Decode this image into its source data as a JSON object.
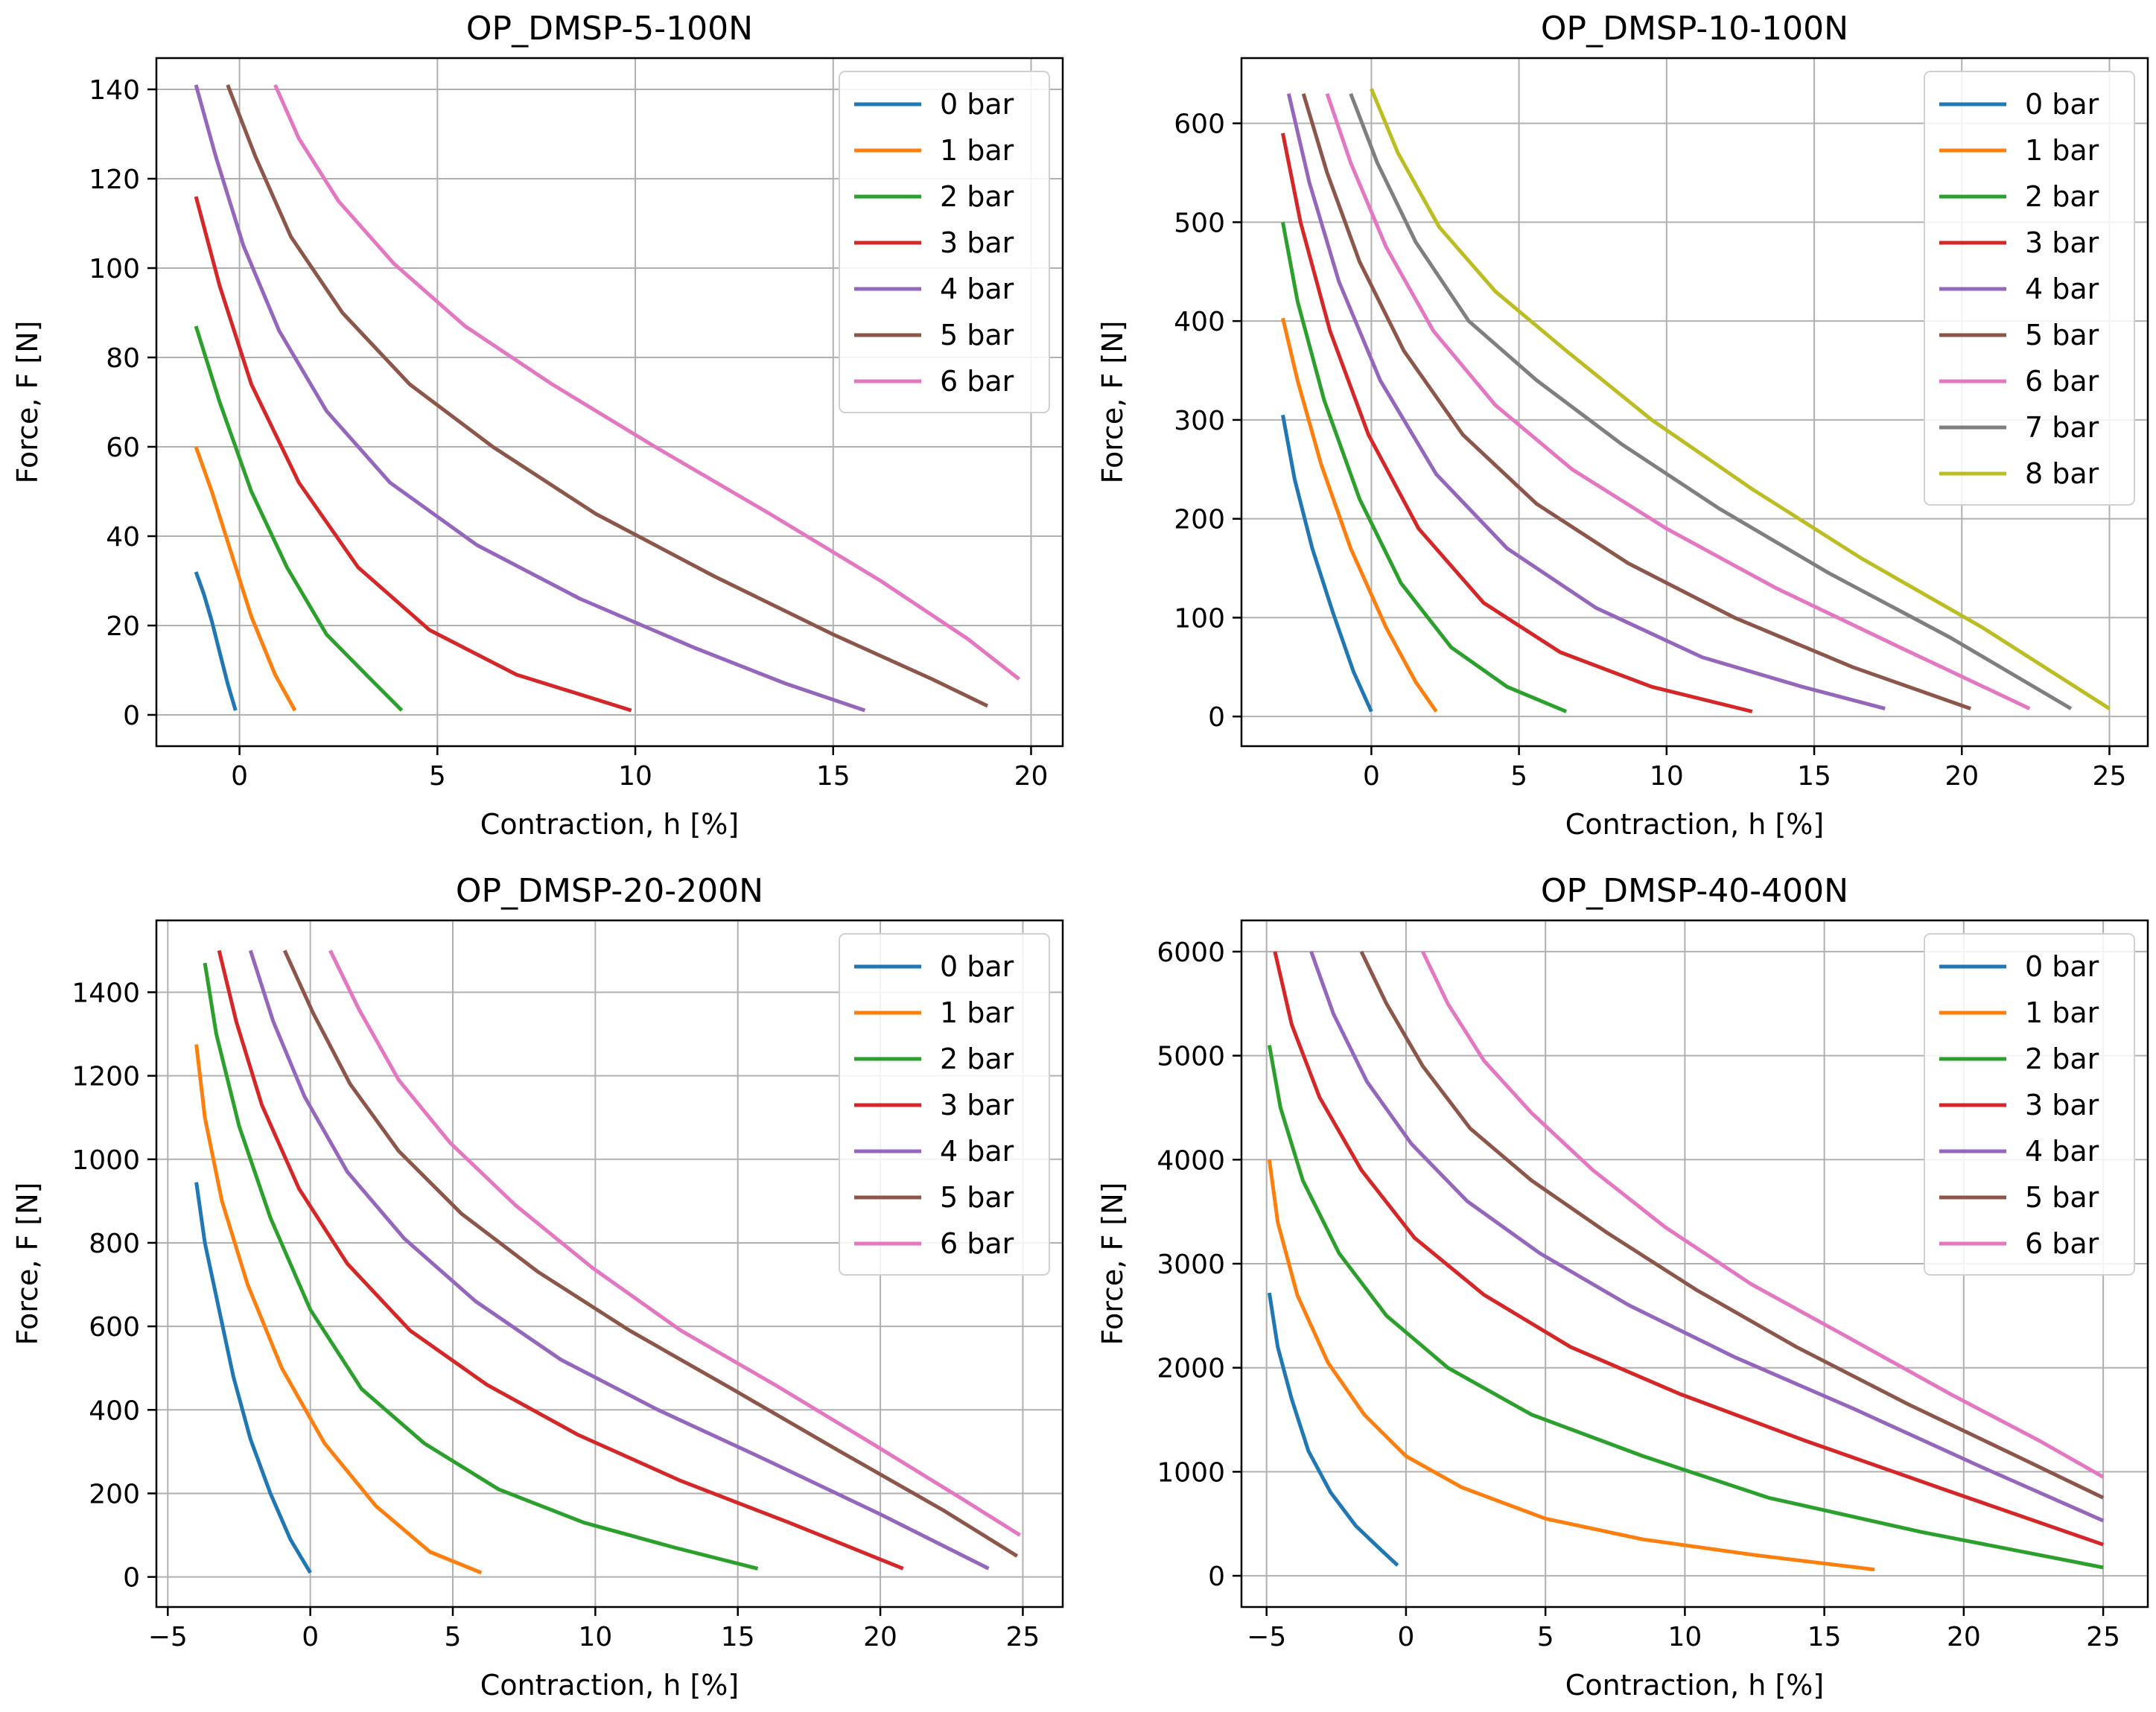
{
  "chart_data": [
    {
      "type": "line",
      "title": "OP_DMSP-5-100N",
      "xlabel": "Contraction, h [%]",
      "ylabel": "Force, F [N]",
      "xlim": [
        -2.1,
        20.8
      ],
      "ylim": [
        -7,
        147
      ],
      "xticks": [
        0,
        5,
        10,
        15,
        20
      ],
      "yticks": [
        0,
        20,
        40,
        60,
        80,
        100,
        120,
        140
      ],
      "grid": true,
      "legend": "top-right",
      "series": [
        {
          "name": "0 bar",
          "color": "#1f77b4",
          "x": [
            -1.1,
            -0.9,
            -0.7,
            -0.5,
            -0.3,
            -0.1
          ],
          "y": [
            32,
            27,
            21,
            14,
            7,
            1
          ]
        },
        {
          "name": "1 bar",
          "color": "#ff7f0e",
          "x": [
            -1.1,
            -0.7,
            -0.2,
            0.3,
            0.9,
            1.4
          ],
          "y": [
            60,
            50,
            36,
            22,
            9,
            1
          ]
        },
        {
          "name": "2 bar",
          "color": "#2ca02c",
          "x": [
            -1.1,
            -0.5,
            0.3,
            1.2,
            2.2,
            3.2,
            4.1
          ],
          "y": [
            87,
            70,
            50,
            33,
            18,
            9,
            1
          ]
        },
        {
          "name": "3 bar",
          "color": "#d62728",
          "x": [
            -1.1,
            -0.5,
            0.3,
            1.5,
            3.0,
            4.8,
            7.0,
            9.9
          ],
          "y": [
            116,
            96,
            74,
            52,
            33,
            19,
            9,
            1
          ]
        },
        {
          "name": "4 bar",
          "color": "#9467bd",
          "x": [
            -1.1,
            -0.6,
            0.1,
            1.0,
            2.2,
            3.8,
            6.0,
            8.6,
            11.5,
            13.8,
            15.8
          ],
          "y": [
            141,
            125,
            105,
            86,
            68,
            52,
            38,
            26,
            15,
            7,
            1
          ]
        },
        {
          "name": "5 bar",
          "color": "#8c564b",
          "x": [
            -0.3,
            0.4,
            1.3,
            2.6,
            4.3,
            6.4,
            9.0,
            12.0,
            15.0,
            17.5,
            18.9
          ],
          "y": [
            141,
            125,
            107,
            90,
            74,
            60,
            45,
            31,
            18,
            8,
            2
          ]
        },
        {
          "name": "6 bar",
          "color": "#e377c2",
          "x": [
            0.9,
            1.5,
            2.5,
            3.9,
            5.7,
            7.9,
            10.5,
            13.4,
            16.2,
            18.4,
            19.7
          ],
          "y": [
            141,
            129,
            115,
            101,
            87,
            74,
            60,
            45,
            30,
            17,
            8
          ]
        }
      ]
    },
    {
      "type": "line",
      "title": "OP_DMSP-10-100N",
      "xlabel": "Contraction, h [%]",
      "ylabel": "Force, F [N]",
      "xlim": [
        -4.4,
        26.3
      ],
      "ylim": [
        -30,
        666
      ],
      "xticks": [
        0,
        5,
        10,
        15,
        20,
        25
      ],
      "yticks": [
        0,
        100,
        200,
        300,
        400,
        500,
        600
      ],
      "grid": true,
      "legend": "top-right",
      "series": [
        {
          "name": "0 bar",
          "color": "#1f77b4",
          "x": [
            -3.0,
            -2.6,
            -2.0,
            -1.3,
            -0.6,
            0.0
          ],
          "y": [
            305,
            240,
            170,
            105,
            45,
            5
          ]
        },
        {
          "name": "1 bar",
          "color": "#ff7f0e",
          "x": [
            -3.0,
            -2.5,
            -1.7,
            -0.7,
            0.5,
            1.5,
            2.2
          ],
          "y": [
            403,
            340,
            255,
            170,
            90,
            35,
            5
          ]
        },
        {
          "name": "2 bar",
          "color": "#2ca02c",
          "x": [
            -3.0,
            -2.5,
            -1.6,
            -0.4,
            1.0,
            2.7,
            4.6,
            6.6
          ],
          "y": [
            500,
            420,
            320,
            220,
            135,
            70,
            30,
            5
          ]
        },
        {
          "name": "3 bar",
          "color": "#d62728",
          "x": [
            -3.0,
            -2.4,
            -1.4,
            -0.1,
            1.6,
            3.8,
            6.4,
            9.5,
            12.9
          ],
          "y": [
            590,
            500,
            390,
            285,
            190,
            115,
            65,
            30,
            5
          ]
        },
        {
          "name": "4 bar",
          "color": "#9467bd",
          "x": [
            -2.8,
            -2.1,
            -1.1,
            0.3,
            2.2,
            4.6,
            7.6,
            11.2,
            14.6,
            17.4
          ],
          "y": [
            630,
            540,
            440,
            340,
            245,
            170,
            110,
            60,
            30,
            8
          ]
        },
        {
          "name": "5 bar",
          "color": "#8c564b",
          "x": [
            -2.3,
            -1.5,
            -0.4,
            1.1,
            3.1,
            5.6,
            8.7,
            12.3,
            16.3,
            20.3
          ],
          "y": [
            630,
            550,
            460,
            370,
            285,
            215,
            155,
            100,
            50,
            8
          ]
        },
        {
          "name": "6 bar",
          "color": "#e377c2",
          "x": [
            -1.5,
            -0.7,
            0.5,
            2.1,
            4.2,
            6.8,
            10.0,
            13.7,
            17.9,
            22.3
          ],
          "y": [
            630,
            560,
            475,
            390,
            315,
            250,
            190,
            130,
            70,
            8
          ]
        },
        {
          "name": "7 bar",
          "color": "#7f7f7f",
          "x": [
            -0.7,
            0.2,
            1.5,
            3.3,
            5.6,
            8.5,
            11.8,
            15.5,
            19.6,
            23.7
          ],
          "y": [
            630,
            560,
            480,
            400,
            340,
            275,
            210,
            145,
            80,
            8
          ]
        },
        {
          "name": "8 bar",
          "color": "#bcbd22",
          "x": [
            0.0,
            0.9,
            2.3,
            4.2,
            6.6,
            9.5,
            12.9,
            16.6,
            20.7,
            25.0
          ],
          "y": [
            635,
            570,
            495,
            430,
            370,
            300,
            230,
            160,
            90,
            8
          ]
        }
      ]
    },
    {
      "type": "line",
      "title": "OP_DMSP-20-200N",
      "xlabel": "Contraction, h [%]",
      "ylabel": "Force, F [N]",
      "xlim": [
        -5.4,
        26.4
      ],
      "ylim": [
        -72,
        1572
      ],
      "xticks": [
        -5,
        0,
        5,
        10,
        15,
        20,
        25
      ],
      "yticks": [
        0,
        200,
        400,
        600,
        800,
        1000,
        1200,
        1400
      ],
      "grid": true,
      "legend": "top-right",
      "series": [
        {
          "name": "0 bar",
          "color": "#1f77b4",
          "x": [
            -4.0,
            -3.7,
            -3.2,
            -2.7,
            -2.1,
            -1.4,
            -0.7,
            0.0
          ],
          "y": [
            945,
            800,
            640,
            480,
            330,
            200,
            90,
            10
          ]
        },
        {
          "name": "1 bar",
          "color": "#ff7f0e",
          "x": [
            -4.0,
            -3.7,
            -3.1,
            -2.2,
            -1.0,
            0.5,
            2.3,
            4.2,
            6.0
          ],
          "y": [
            1275,
            1100,
            900,
            700,
            500,
            320,
            170,
            60,
            10
          ]
        },
        {
          "name": "2 bar",
          "color": "#2ca02c",
          "x": [
            -3.7,
            -3.3,
            -2.5,
            -1.4,
            0.0,
            1.8,
            4.0,
            6.6,
            9.6,
            12.8,
            15.7
          ],
          "y": [
            1470,
            1300,
            1080,
            860,
            640,
            450,
            320,
            210,
            130,
            70,
            20
          ]
        },
        {
          "name": "3 bar",
          "color": "#d62728",
          "x": [
            -3.2,
            -2.6,
            -1.7,
            -0.4,
            1.3,
            3.5,
            6.2,
            9.4,
            13.0,
            16.8,
            20.8
          ],
          "y": [
            1500,
            1330,
            1130,
            930,
            750,
            590,
            460,
            340,
            230,
            130,
            20
          ]
        },
        {
          "name": "4 bar",
          "color": "#9467bd",
          "x": [
            -2.1,
            -1.3,
            -0.2,
            1.3,
            3.3,
            5.8,
            8.8,
            12.2,
            16.0,
            20.0,
            23.8
          ],
          "y": [
            1500,
            1330,
            1150,
            970,
            810,
            660,
            520,
            400,
            280,
            150,
            20
          ]
        },
        {
          "name": "5 bar",
          "color": "#8c564b",
          "x": [
            -0.9,
            0.1,
            1.4,
            3.1,
            5.3,
            8.0,
            11.2,
            14.8,
            18.6,
            22.2,
            24.8
          ],
          "y": [
            1500,
            1350,
            1180,
            1020,
            870,
            730,
            590,
            450,
            300,
            160,
            50
          ]
        },
        {
          "name": "6 bar",
          "color": "#e377c2",
          "x": [
            0.7,
            1.7,
            3.1,
            4.9,
            7.2,
            9.9,
            13.0,
            16.3,
            19.7,
            22.8,
            24.9
          ],
          "y": [
            1500,
            1360,
            1190,
            1040,
            890,
            740,
            590,
            460,
            320,
            190,
            100
          ]
        }
      ]
    },
    {
      "type": "line",
      "title": "OP_DMSP-40-400N",
      "xlabel": "Contraction, h [%]",
      "ylabel": "Force, F [N]",
      "xlim": [
        -5.9,
        26.6
      ],
      "ylim": [
        -300,
        6300
      ],
      "xticks": [
        -5,
        0,
        5,
        10,
        15,
        20,
        25
      ],
      "yticks": [
        0,
        1000,
        2000,
        3000,
        4000,
        5000,
        6000
      ],
      "grid": true,
      "legend": "top-right",
      "series": [
        {
          "name": "0 bar",
          "color": "#1f77b4",
          "x": [
            -4.9,
            -4.6,
            -4.1,
            -3.5,
            -2.7,
            -1.8,
            -0.9,
            -0.3
          ],
          "y": [
            2720,
            2200,
            1700,
            1200,
            800,
            480,
            250,
            100
          ]
        },
        {
          "name": "1 bar",
          "color": "#ff7f0e",
          "x": [
            -4.9,
            -4.6,
            -3.9,
            -2.8,
            -1.5,
            0.0,
            2.0,
            5.0,
            8.5,
            12.5,
            16.8
          ],
          "y": [
            4000,
            3400,
            2700,
            2050,
            1550,
            1150,
            850,
            550,
            350,
            200,
            60
          ]
        },
        {
          "name": "2 bar",
          "color": "#2ca02c",
          "x": [
            -4.9,
            -4.5,
            -3.7,
            -2.4,
            -0.7,
            1.5,
            4.5,
            8.5,
            13.0,
            18.5,
            25.0
          ],
          "y": [
            5100,
            4500,
            3800,
            3100,
            2500,
            2000,
            1550,
            1150,
            750,
            420,
            80
          ]
        },
        {
          "name": "3 bar",
          "color": "#d62728",
          "x": [
            -4.7,
            -4.1,
            -3.1,
            -1.6,
            0.3,
            2.8,
            5.9,
            9.8,
            14.3,
            19.4,
            25.0
          ],
          "y": [
            6000,
            5300,
            4600,
            3900,
            3250,
            2700,
            2200,
            1750,
            1300,
            820,
            300
          ]
        },
        {
          "name": "4 bar",
          "color": "#9467bd",
          "x": [
            -3.4,
            -2.6,
            -1.4,
            0.2,
            2.2,
            4.8,
            8.0,
            11.8,
            16.1,
            20.6,
            25.0
          ],
          "y": [
            6000,
            5400,
            4750,
            4150,
            3600,
            3100,
            2600,
            2100,
            1600,
            1050,
            530
          ]
        },
        {
          "name": "5 bar",
          "color": "#8c564b",
          "x": [
            -1.6,
            -0.7,
            0.6,
            2.3,
            4.5,
            7.2,
            10.4,
            14.0,
            18.0,
            21.9,
            25.0
          ],
          "y": [
            6000,
            5500,
            4900,
            4300,
            3800,
            3300,
            2750,
            2200,
            1650,
            1150,
            750
          ]
        },
        {
          "name": "6 bar",
          "color": "#e377c2",
          "x": [
            0.6,
            1.5,
            2.8,
            4.5,
            6.7,
            9.3,
            12.4,
            15.8,
            19.5,
            22.7,
            25.0
          ],
          "y": [
            6000,
            5500,
            4950,
            4450,
            3900,
            3350,
            2800,
            2300,
            1750,
            1300,
            950
          ]
        }
      ]
    }
  ]
}
